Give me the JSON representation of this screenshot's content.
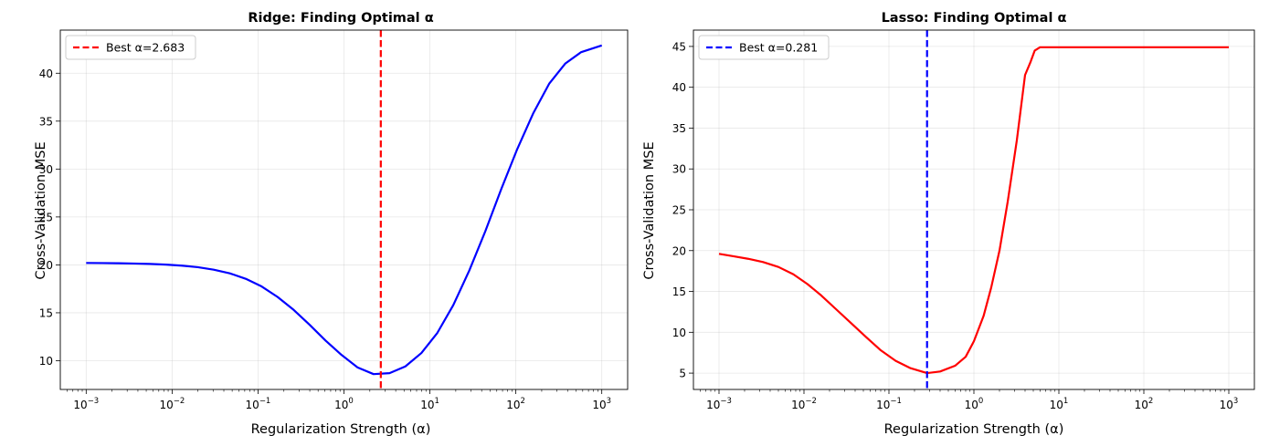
{
  "chart_data": [
    {
      "type": "line",
      "title": "Ridge: Finding Optimal α",
      "xlabel": "Regularization Strength (α)",
      "ylabel": "Cross-Validation MSE",
      "xscale": "log",
      "xlim": [
        0.0005,
        2000
      ],
      "ylim": [
        7,
        44.5
      ],
      "x_ticks": [
        0.001,
        0.01,
        0.1,
        1,
        10,
        100,
        1000
      ],
      "x_tick_labels": [
        {
          "base": "10",
          "exp": "−3"
        },
        {
          "base": "10",
          "exp": "−2"
        },
        {
          "base": "10",
          "exp": "−1"
        },
        {
          "base": "10",
          "exp": "0"
        },
        {
          "base": "10",
          "exp": "1"
        },
        {
          "base": "10",
          "exp": "2"
        },
        {
          "base": "10",
          "exp": "3"
        }
      ],
      "y_ticks": [
        10,
        15,
        20,
        25,
        30,
        35,
        40
      ],
      "y_tick_labels": [
        "10",
        "15",
        "20",
        "25",
        "30",
        "35",
        "40"
      ],
      "grid": true,
      "legend_position": "top-left",
      "series": [
        {
          "color": "#0000ff",
          "x": [
            0.001,
            0.00153,
            0.00235,
            0.0036,
            0.00552,
            0.00848,
            0.013,
            0.0199,
            0.0305,
            0.0469,
            0.0719,
            0.11,
            0.169,
            0.26,
            0.398,
            0.611,
            0.937,
            1.44,
            2.21,
            3.39,
            5.18,
            7.96,
            12.2,
            18.7,
            28.7,
            44.1,
            67.6,
            104,
            159,
            244,
            375,
            575,
            1000
          ],
          "y": [
            20.2,
            20.19,
            20.17,
            20.14,
            20.1,
            20.03,
            19.92,
            19.76,
            19.5,
            19.12,
            18.55,
            17.75,
            16.65,
            15.3,
            13.75,
            12.1,
            10.6,
            9.3,
            8.6,
            8.7,
            9.4,
            10.8,
            12.9,
            15.8,
            19.4,
            23.5,
            27.9,
            32.1,
            35.8,
            38.9,
            41.0,
            42.2,
            42.9
          ]
        }
      ],
      "vline": {
        "x": 2.683,
        "color": "#ff0000",
        "label": "Best α=2.683"
      }
    },
    {
      "type": "line",
      "title": "Lasso: Finding Optimal α",
      "xlabel": "Regularization Strength (α)",
      "ylabel": "Cross-Validation MSE",
      "xscale": "log",
      "xlim": [
        0.0005,
        2000
      ],
      "ylim": [
        3.0,
        47.0
      ],
      "x_ticks": [
        0.001,
        0.01,
        0.1,
        1,
        10,
        100,
        1000
      ],
      "x_tick_labels": [
        {
          "base": "10",
          "exp": "−3"
        },
        {
          "base": "10",
          "exp": "−2"
        },
        {
          "base": "10",
          "exp": "−1"
        },
        {
          "base": "10",
          "exp": "0"
        },
        {
          "base": "10",
          "exp": "1"
        },
        {
          "base": "10",
          "exp": "2"
        },
        {
          "base": "10",
          "exp": "3"
        }
      ],
      "y_ticks": [
        5,
        10,
        15,
        20,
        25,
        30,
        35,
        40,
        45
      ],
      "y_tick_labels": [
        "5",
        "10",
        "15",
        "20",
        "25",
        "30",
        "35",
        "40",
        "45"
      ],
      "grid": true,
      "legend_position": "top-left",
      "series": [
        {
          "color": "#ff0000",
          "x": [
            0.001,
            0.0015,
            0.0022,
            0.0033,
            0.005,
            0.0075,
            0.011,
            0.016,
            0.024,
            0.036,
            0.054,
            0.08,
            0.12,
            0.18,
            0.281,
            0.4,
            0.6,
            0.8,
            1.0,
            1.3,
            1.6,
            2.0,
            2.5,
            3.2,
            4.0,
            4.6,
            5.2,
            6.0,
            10,
            30,
            100,
            300,
            1000
          ],
          "y": [
            19.6,
            19.3,
            19.0,
            18.6,
            18.0,
            17.1,
            15.9,
            14.5,
            12.8,
            11.1,
            9.4,
            7.8,
            6.5,
            5.6,
            5.0,
            5.2,
            5.9,
            7.0,
            8.9,
            12.0,
            15.5,
            20.0,
            26.0,
            33.5,
            41.5,
            43.0,
            44.5,
            44.9,
            44.9,
            44.9,
            44.9,
            44.9,
            44.9
          ]
        }
      ],
      "vline": {
        "x": 0.281,
        "color": "#0000ff",
        "label": "Best α=0.281"
      }
    }
  ]
}
